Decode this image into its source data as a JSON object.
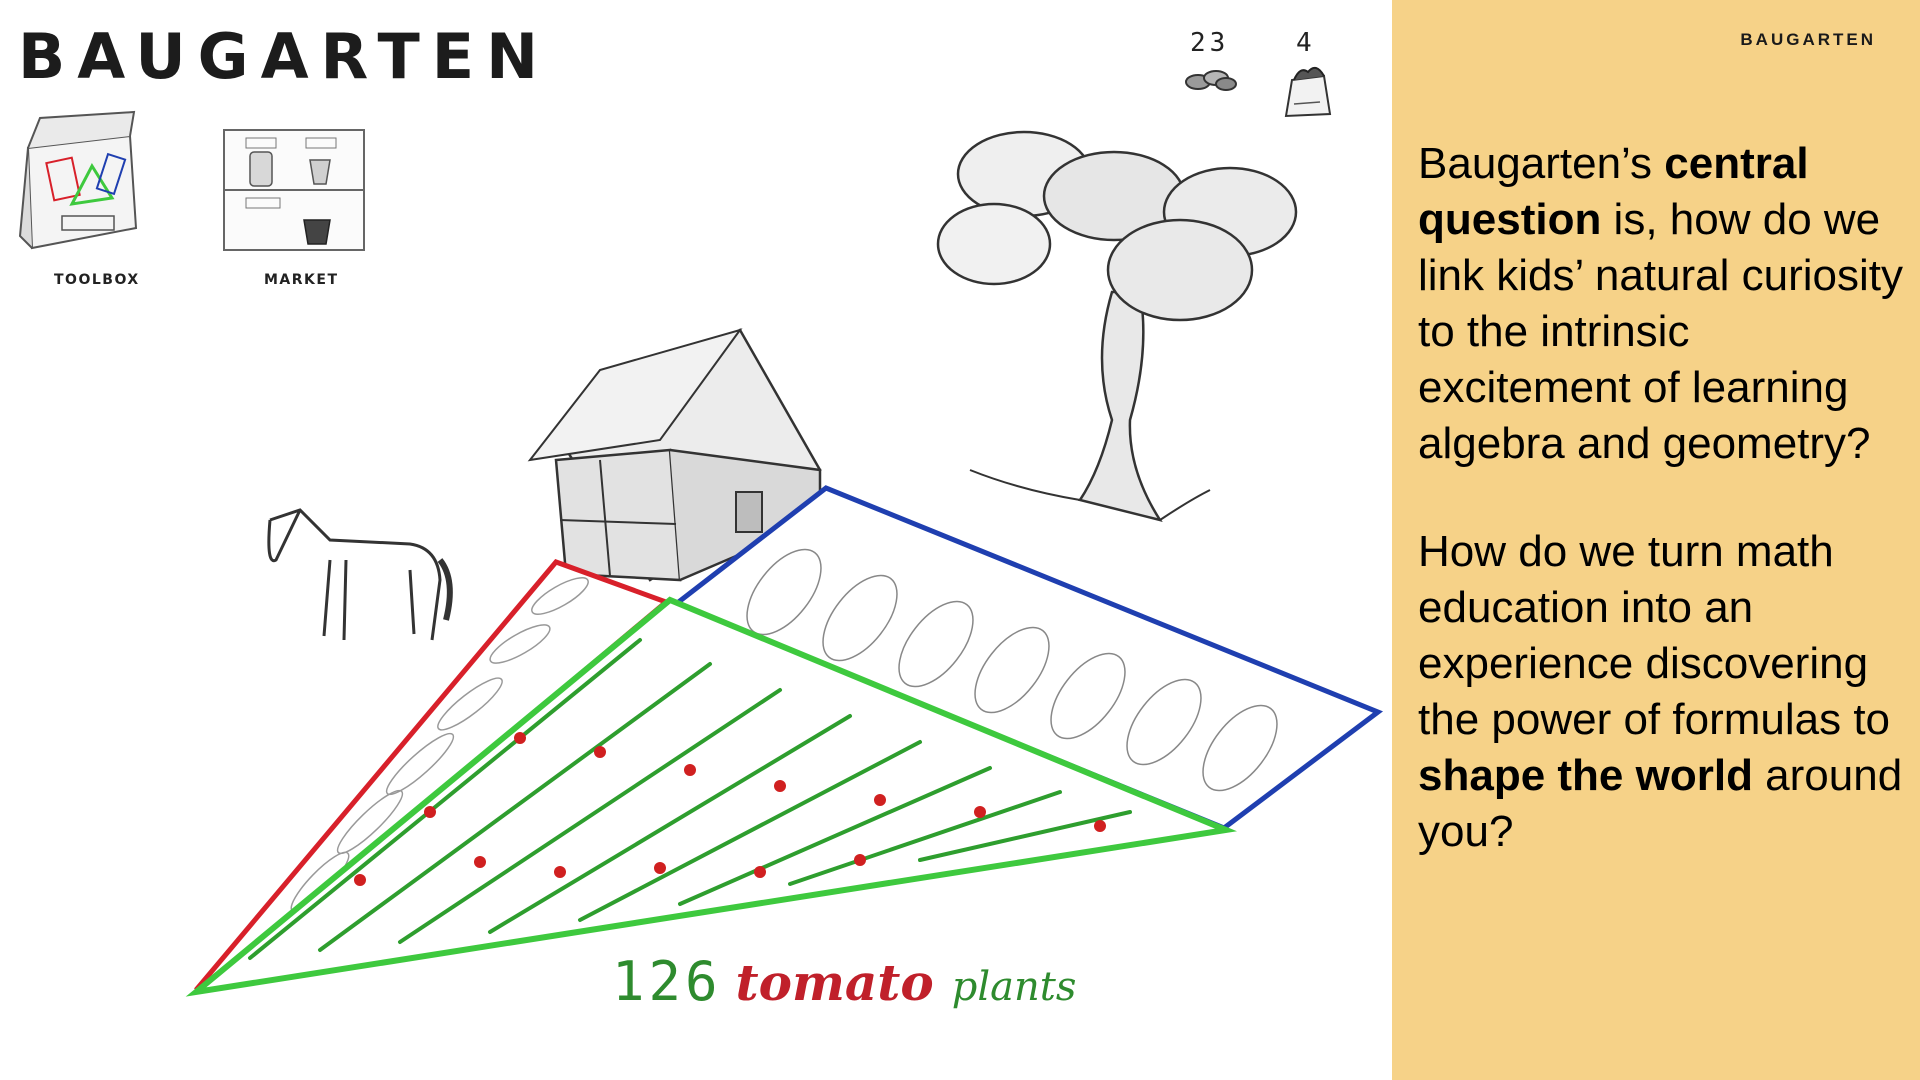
{
  "app": {
    "logo": "BAUGARTEN",
    "toolbox_label": "TOOLBOX",
    "market_label": "MARKET",
    "coins_count": "23",
    "bags_count": "4"
  },
  "field": {
    "count": "126",
    "word1": "tomato",
    "word2": "plants"
  },
  "panel": {
    "logo": "BAUGARTEN",
    "paragraph1": {
      "t1": "Baugarten’s ",
      "b1": "central question",
      "t2": " is, how do we link kids’ natural curiosity to the intrinsic excitement of learning algebra and geometry?"
    },
    "paragraph2": {
      "t1": "How do we turn math education into an experience discovering the power of formulas to ",
      "b1": "shape the world",
      "t2": " around you?"
    }
  },
  "colors": {
    "panel_bg": "#f6d288",
    "red_plot": "#d8202a",
    "blue_plot": "#1f3fb0",
    "green_plot": "#3ec93e",
    "plant_green": "#2e9e2e",
    "tomato_red": "#d02020"
  },
  "icons": [
    "toolbox-icon",
    "market-icon",
    "coins-icon",
    "seed-bag-icon",
    "barn-icon",
    "tree-icon",
    "horse-icon"
  ]
}
